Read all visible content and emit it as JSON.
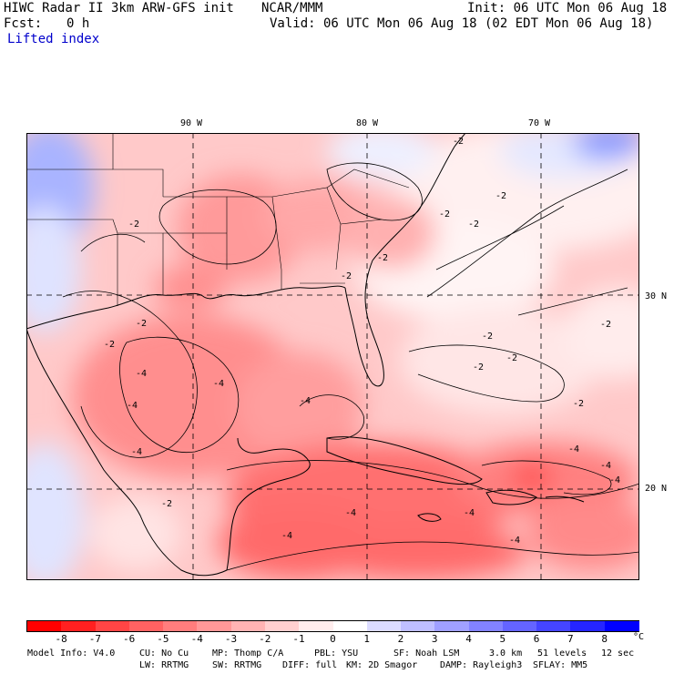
{
  "header": {
    "model_title": "HIWC Radar II 3km ARW-GFS init",
    "org": "NCAR/MMM",
    "init": "Init: 06 UTC Mon 06 Aug 18",
    "fcst_label": "Fcst:",
    "fcst_value": "0 h",
    "valid": "Valid: 06 UTC Mon 06 Aug 18 (02 EDT Mon 06 Aug 18)",
    "field": "Lifted index"
  },
  "map": {
    "lon_labels": [
      "90 W",
      "80 W",
      "70 W"
    ],
    "lat_labels": [
      "30 N",
      "20 N"
    ],
    "contour_labels": [
      "-2",
      "-4"
    ]
  },
  "colorbar": {
    "ticks": [
      "-8",
      "-7",
      "-6",
      "-5",
      "-4",
      "-3",
      "-2",
      "-1",
      "0",
      "1",
      "2",
      "3",
      "4",
      "5",
      "6",
      "7",
      "8"
    ],
    "unit": "°C",
    "colors": [
      "#ff0000",
      "#ff2020",
      "#ff4545",
      "#ff6262",
      "#ff7d7d",
      "#ff9898",
      "#ffb4b4",
      "#ffd0d0",
      "#ffeded",
      "#ffffff",
      "#dcdcff",
      "#bfbfff",
      "#a0a0ff",
      "#8282ff",
      "#6464ff",
      "#4545ff",
      "#2525ff",
      "#0000ff"
    ]
  },
  "footer": {
    "line1": [
      "Model Info: V4.0",
      "CU: No Cu",
      "MP: Thomp C/A",
      "PBL: YSU",
      "SF: Noah LSM",
      "3.0 km",
      "51 levels",
      "12 sec"
    ],
    "line2": [
      "LW: RRTMG",
      "SW: RRTMG",
      "DIFF: full",
      "KM: 2D Smagor",
      "DAMP: Rayleigh3",
      "SFLAY: MM5"
    ]
  }
}
